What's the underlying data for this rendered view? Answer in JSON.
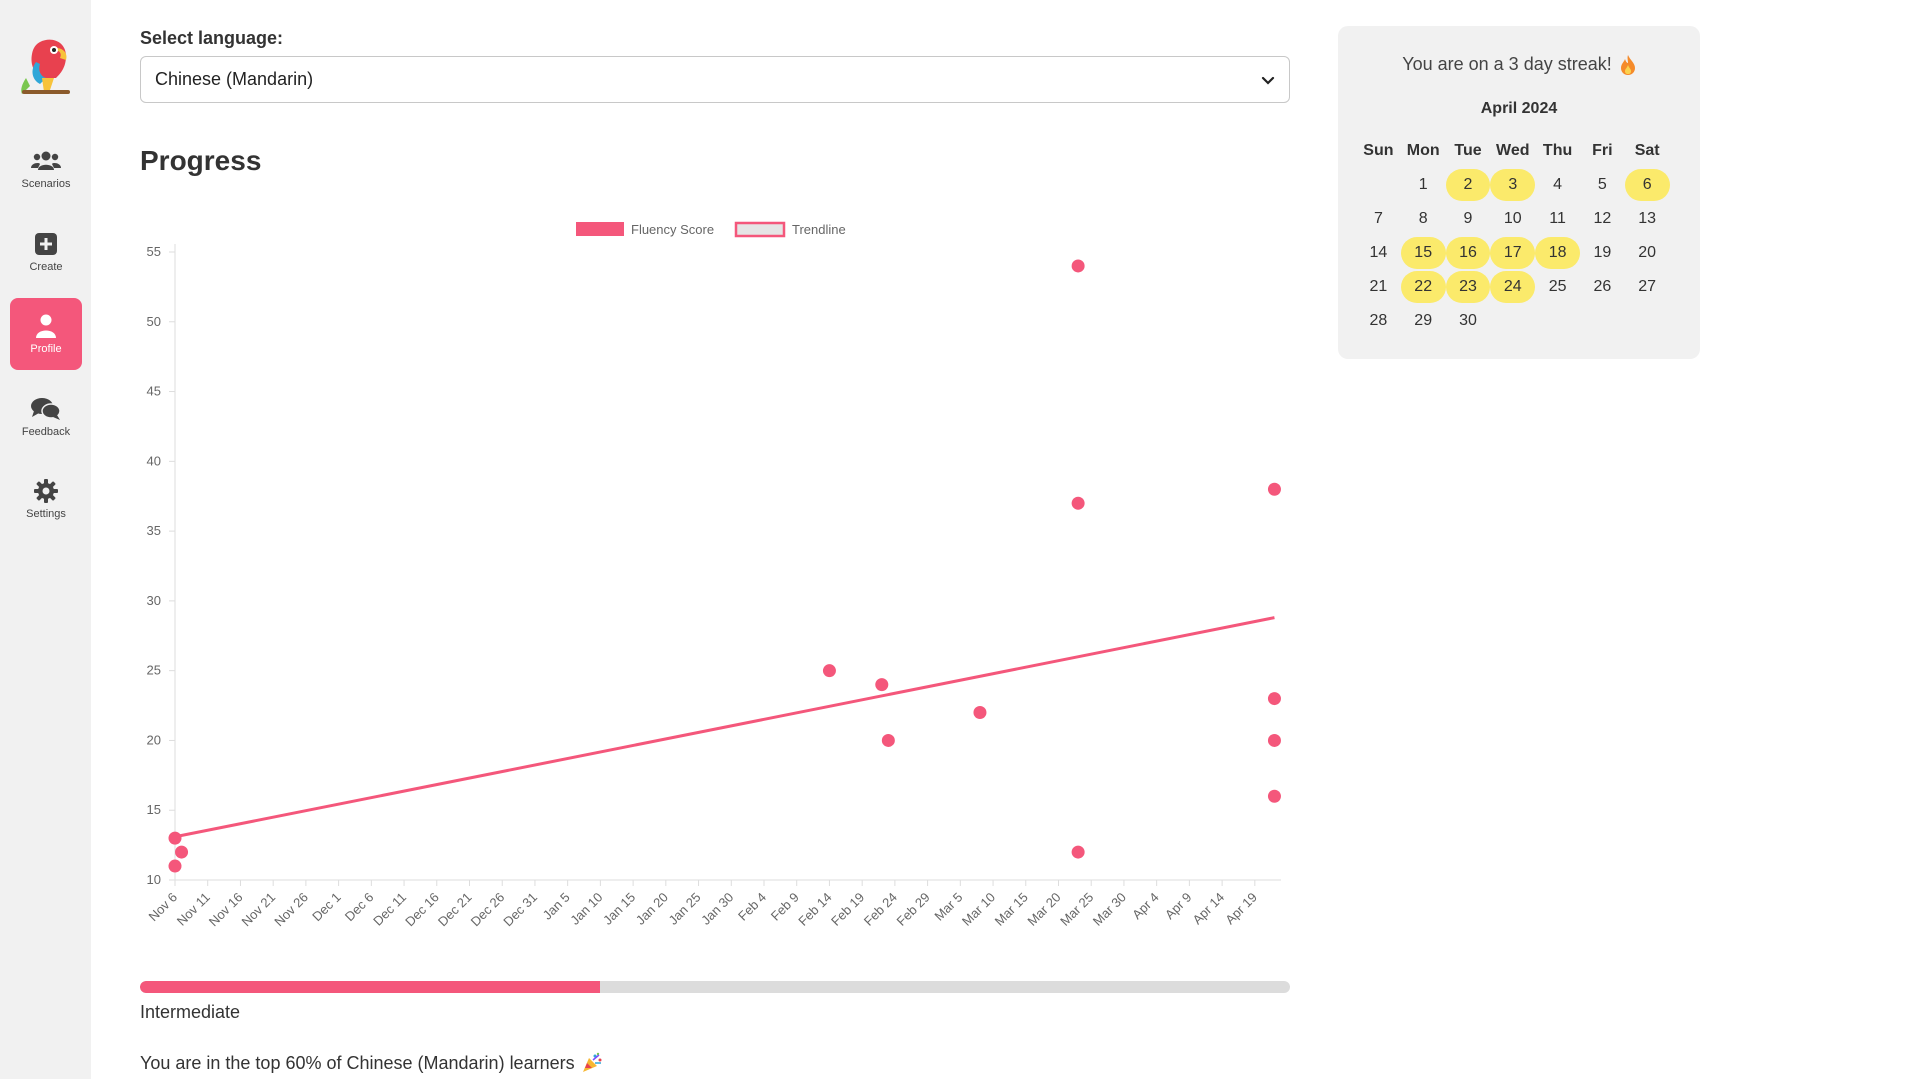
{
  "sidebar": {
    "items": [
      {
        "label": "Scenarios",
        "icon": "users-icon"
      },
      {
        "label": "Create",
        "icon": "plus-square-icon"
      },
      {
        "label": "Profile",
        "icon": "user-icon",
        "active": true
      },
      {
        "label": "Feedback",
        "icon": "comments-icon"
      },
      {
        "label": "Settings",
        "icon": "gear-icon"
      }
    ]
  },
  "language": {
    "label": "Select language:",
    "selected": "Chinese (Mandarin)"
  },
  "progress": {
    "title": "Progress",
    "level": "Intermediate",
    "level_fraction": 0.4,
    "rank_text": "You are in the top 60% of Chinese (Mandarin) learners"
  },
  "chart_data": {
    "type": "scatter",
    "legend": [
      {
        "name": "Fluency Score",
        "color": "#f4577b"
      },
      {
        "name": "Trendline",
        "color": "#e5e5e5",
        "border": "#f4577b"
      }
    ],
    "legend_placement": "top",
    "ylim": [
      10,
      55
    ],
    "yticks": [
      10,
      15,
      20,
      25,
      30,
      35,
      40,
      45,
      50,
      55
    ],
    "xlim": [
      "2023-11-06",
      "2024-04-23"
    ],
    "xticks": [
      "Nov 6",
      "Nov 11",
      "Nov 16",
      "Nov 21",
      "Nov 26",
      "Dec 1",
      "Dec 6",
      "Dec 11",
      "Dec 16",
      "Dec 21",
      "Dec 26",
      "Dec 31",
      "Jan 5",
      "Jan 10",
      "Jan 15",
      "Jan 20",
      "Jan 25",
      "Jan 30",
      "Feb 4",
      "Feb 9",
      "Feb 14",
      "Feb 19",
      "Feb 24",
      "Feb 29",
      "Mar 5",
      "Mar 10",
      "Mar 15",
      "Mar 20",
      "Mar 25",
      "Mar 30",
      "Apr 4",
      "Apr 9",
      "Apr 14",
      "Apr 19"
    ],
    "series": [
      {
        "name": "Fluency Score",
        "points": [
          {
            "x": "2023-11-06",
            "y": 13
          },
          {
            "x": "2023-11-06",
            "y": 11
          },
          {
            "x": "2023-11-07",
            "y": 12
          },
          {
            "x": "2024-02-14",
            "y": 25
          },
          {
            "x": "2024-02-22",
            "y": 24
          },
          {
            "x": "2024-02-23",
            "y": 20
          },
          {
            "x": "2024-03-08",
            "y": 22
          },
          {
            "x": "2024-03-23",
            "y": 54
          },
          {
            "x": "2024-03-23",
            "y": 37
          },
          {
            "x": "2024-03-23",
            "y": 12
          },
          {
            "x": "2024-04-22",
            "y": 38
          },
          {
            "x": "2024-04-22",
            "y": 23
          },
          {
            "x": "2024-04-22",
            "y": 20
          },
          {
            "x": "2024-04-22",
            "y": 16
          }
        ]
      },
      {
        "name": "Trendline",
        "points": [
          {
            "x": "2023-11-06",
            "y": 13.1
          },
          {
            "x": "2024-04-22",
            "y": 28.8
          }
        ]
      }
    ],
    "colors": {
      "points": "#f4577b",
      "line": "#f4577b",
      "axis": "#dddddd",
      "tick_text": "#666666"
    }
  },
  "calendar": {
    "streak_text": "You are on a 3 day streak!",
    "month": "April 2024",
    "weekdays": [
      "Sun",
      "Mon",
      "Tue",
      "Wed",
      "Thu",
      "Fri",
      "Sat"
    ],
    "first_weekday": 1,
    "days_in_month": 30,
    "highlighted": [
      2,
      3,
      6,
      15,
      16,
      17,
      18,
      22,
      23,
      24
    ],
    "highlight_color": "#fbea6b"
  }
}
